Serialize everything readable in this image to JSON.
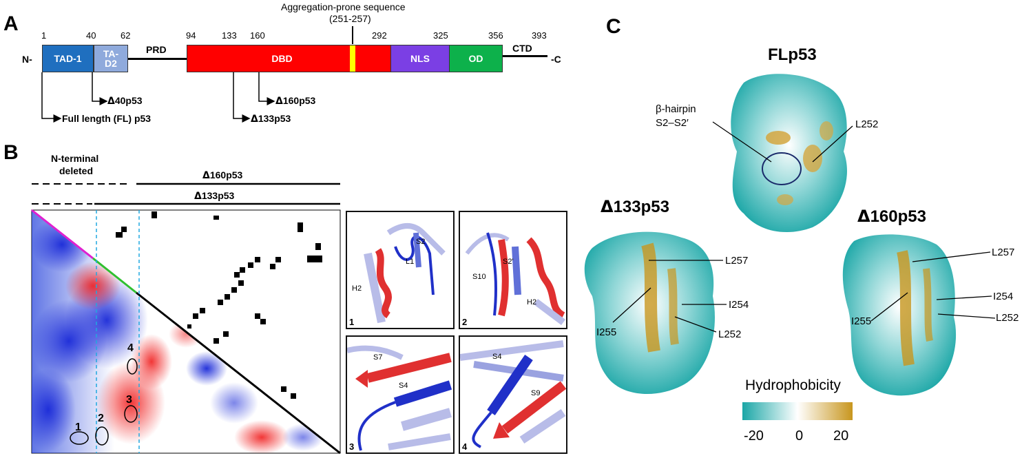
{
  "panel_a": {
    "label": "A",
    "n_term": "N-",
    "c_term": "-C",
    "agg_title": "Aggregation-prone sequence",
    "agg_range": "(251-257)",
    "positions": [
      "1",
      "40",
      "62",
      "94",
      "133",
      "160",
      "292",
      "325",
      "356",
      "393"
    ],
    "domains": {
      "tad1": "TAD-1",
      "tad2_line1": "TA-",
      "tad2_line2": "D2",
      "prd": "PRD",
      "dbd": "DBD",
      "nls": "NLS",
      "od": "OD",
      "ctd": "CTD"
    },
    "isoforms": {
      "d40": "40p53",
      "fl": "Full length (FL) p53",
      "d160": "160p53",
      "d133": "133p53"
    },
    "delta": "Δ",
    "colors": {
      "tad1": "#1f6fbf",
      "tad2": "#8faadc",
      "dbd": "#ff0000",
      "agg": "#ffff00",
      "nls": "#7b3fe4",
      "od": "#0db14b"
    }
  },
  "panel_b": {
    "label": "B",
    "n_deleted_line1": "N-terminal",
    "n_deleted_line2": "deleted",
    "bar_d160": "160p53",
    "bar_d133": "133p53",
    "delta": "Δ",
    "circles": [
      "1",
      "2",
      "3",
      "4"
    ],
    "structures": [
      {
        "num": "1",
        "labels": [
          "S2",
          "L1",
          "H2"
        ]
      },
      {
        "num": "2",
        "labels": [
          "S10",
          "S2'",
          "H2"
        ]
      },
      {
        "num": "3",
        "labels": [
          "S7",
          "S4"
        ]
      },
      {
        "num": "4",
        "labels": [
          "S4",
          "S9"
        ]
      }
    ]
  },
  "panel_c": {
    "label": "C",
    "fl_title": "FLp53",
    "d133_title": "133p53",
    "d160_title": "160p53",
    "delta": "Δ",
    "hairpin_line1": "β-hairpin",
    "hairpin_line2": "S2–S2′",
    "fl_res": "L252",
    "d133_res": [
      "L257",
      "I254",
      "I255",
      "L252"
    ],
    "d160_res": [
      "L257",
      "I254",
      "I255",
      "L252"
    ],
    "legend_title": "Hydrophobicity",
    "legend_ticks": [
      "-20",
      "0",
      "20"
    ],
    "legend_colors": [
      "#1aa6a6",
      "#ffffff",
      "#c8961e"
    ]
  }
}
